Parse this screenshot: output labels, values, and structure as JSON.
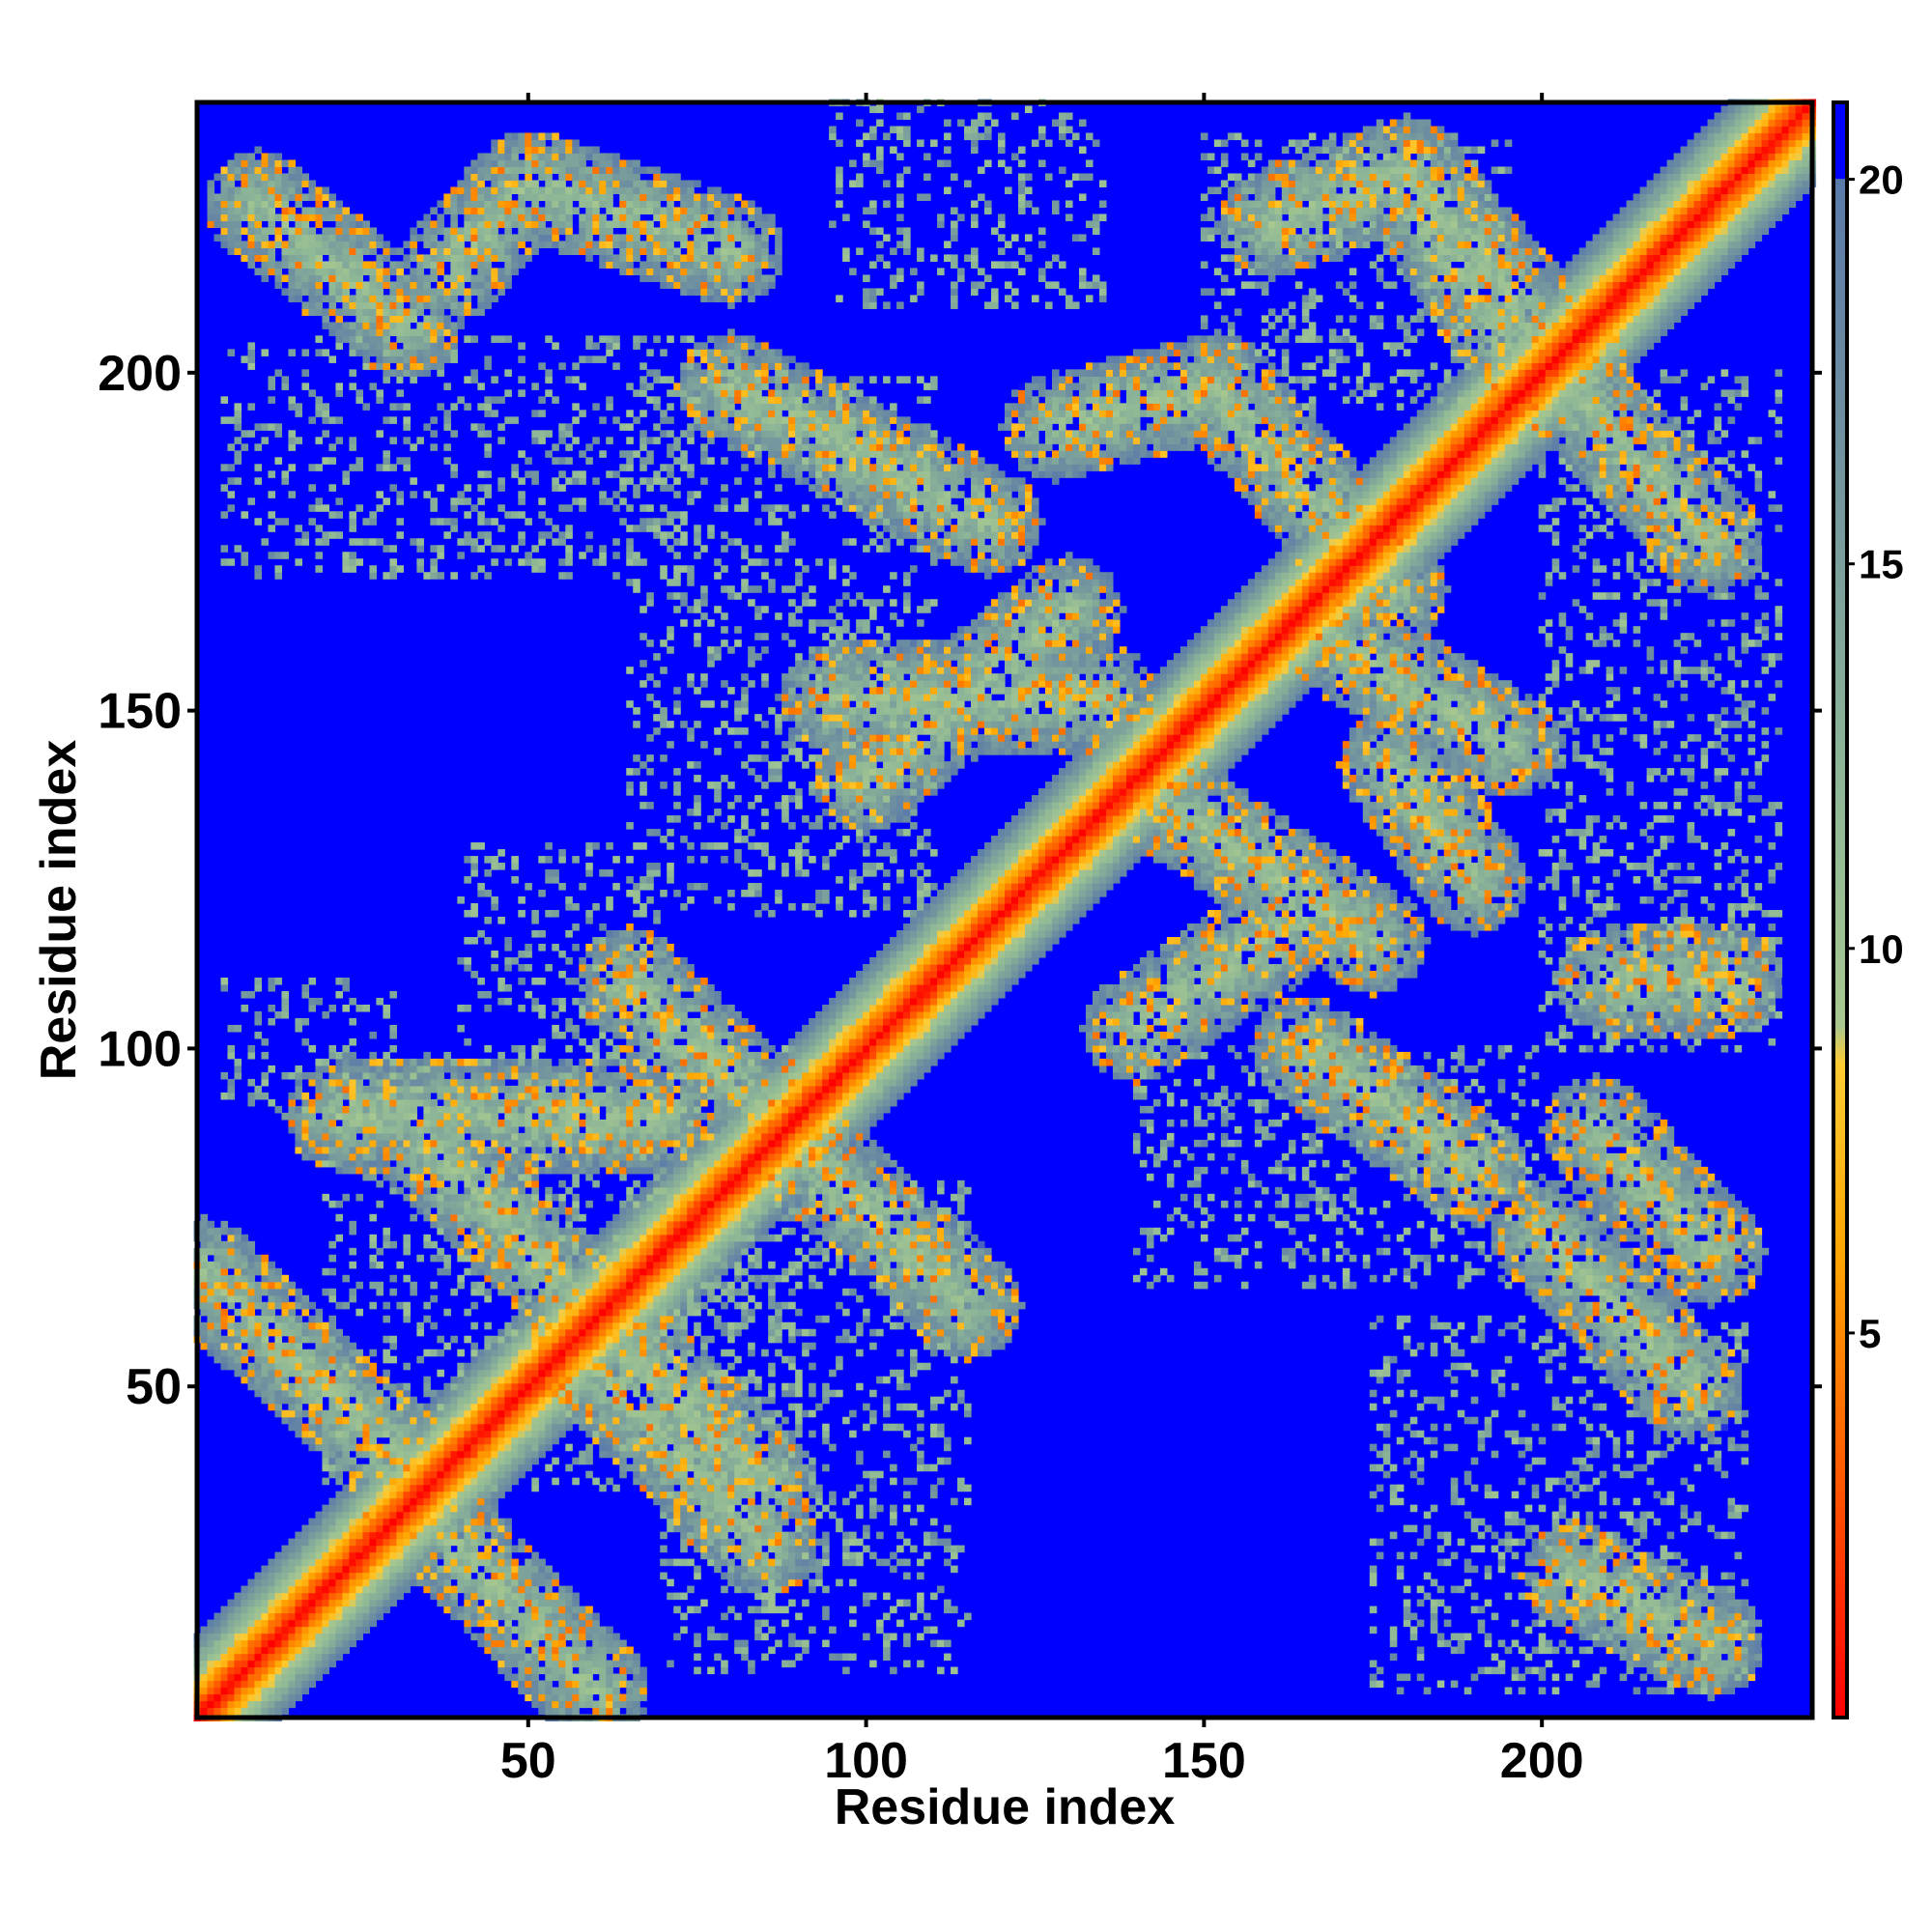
{
  "chart_data": {
    "type": "heatmap",
    "title": "",
    "xlabel": "Residue index",
    "ylabel": "Residue index",
    "x_range": [
      1,
      240
    ],
    "y_range": [
      1,
      240
    ],
    "x_ticks": [
      50,
      100,
      150,
      200
    ],
    "y_ticks": [
      50,
      100,
      150,
      200
    ],
    "n_residues": 240,
    "value_range": [
      0,
      21
    ],
    "background_value": 21,
    "colorbar": {
      "ticks": [
        5,
        10,
        15,
        20
      ],
      "stops": [
        {
          "value": 0,
          "color": "#ff0000"
        },
        {
          "value": 3,
          "color": "#ff5500"
        },
        {
          "value": 6,
          "color": "#ffa500"
        },
        {
          "value": 8.5,
          "color": "#ffcc33"
        },
        {
          "value": 9,
          "color": "#a8c890"
        },
        {
          "value": 12,
          "color": "#8fb896"
        },
        {
          "value": 17,
          "color": "#6d8ea0"
        },
        {
          "value": 20,
          "color": "#5a7aaa"
        },
        {
          "value": 20.01,
          "color": "#0000ff"
        },
        {
          "value": 21,
          "color": "#0000ff"
        }
      ]
    },
    "diagonal": {
      "band_width": 9
    },
    "contact_bands": [
      {
        "points": [
          [
            2,
            67
          ],
          [
            32,
            38
          ]
        ]
      },
      {
        "points": [
          [
            33,
            33
          ],
          [
            60,
            5
          ]
        ]
      },
      {
        "points": [
          [
            58,
            55
          ],
          [
            85,
            27
          ]
        ]
      },
      {
        "points": [
          [
            35,
            86
          ],
          [
            85,
            35
          ]
        ]
      },
      {
        "points": [
          [
            65,
            110
          ],
          [
            115,
            62
          ]
        ]
      },
      {
        "points": [
          [
            22,
            90
          ],
          [
            70,
            90
          ]
        ]
      },
      {
        "points": [
          [
            10,
            225
          ],
          [
            32,
            207
          ]
        ]
      },
      {
        "points": [
          [
            38,
            215
          ],
          [
            50,
            228
          ],
          [
            80,
            218
          ]
        ]
      },
      {
        "points": [
          [
            80,
            198
          ],
          [
            118,
            178
          ]
        ]
      },
      {
        "points": [
          [
            95,
            152
          ],
          [
            135,
            152
          ]
        ]
      },
      {
        "points": [
          [
            100,
            140
          ],
          [
            130,
            165
          ]
        ]
      },
      {
        "points": [
          [
            128,
            192
          ],
          [
            152,
            198
          ],
          [
            178,
            168
          ]
        ]
      },
      {
        "points": [
          [
            160,
            222
          ],
          [
            180,
            230
          ],
          [
            205,
            200
          ]
        ]
      },
      {
        "points": [
          [
            180,
            228
          ],
          [
            195,
            205
          ]
        ]
      },
      {
        "points": [
          [
            202,
            200
          ],
          [
            225,
            175
          ]
        ]
      },
      {
        "points": [
          [
            145,
            136
          ],
          [
            175,
            116
          ]
        ]
      },
      {
        "points": [
          [
            140,
            103
          ],
          [
            165,
            120
          ]
        ]
      },
      {
        "points": [
          [
            170,
            160
          ],
          [
            195,
            145
          ]
        ]
      },
      {
        "points": [
          [
            178,
            142
          ],
          [
            190,
            125
          ]
        ]
      },
      {
        "points": [
          [
            165,
            100
          ],
          [
            190,
            82
          ]
        ]
      },
      {
        "points": [
          [
            200,
            73
          ],
          [
            222,
            50
          ]
        ]
      },
      {
        "points": [
          [
            205,
            22
          ],
          [
            225,
            12
          ]
        ]
      },
      {
        "points": [
          [
            208,
            88
          ],
          [
            225,
            70
          ]
        ]
      },
      {
        "points": [
          [
            210,
            110
          ],
          [
            228,
            110
          ]
        ]
      }
    ],
    "noise_regions": [
      {
        "x": [
          5,
          75
        ],
        "y": [
          170,
          205
        ]
      },
      {
        "x": [
          20,
          90
        ],
        "y": [
          35,
          100
        ]
      },
      {
        "x": [
          70,
          115
        ],
        "y": [
          8,
          80
        ]
      },
      {
        "x": [
          95,
          135
        ],
        "y": [
          210,
          240
        ]
      },
      {
        "x": [
          65,
          110
        ],
        "y": [
          120,
          200
        ]
      },
      {
        "x": [
          140,
          200
        ],
        "y": [
          65,
          100
        ]
      },
      {
        "x": [
          175,
          230
        ],
        "y": [
          5,
          60
        ]
      },
      {
        "x": [
          200,
          235
        ],
        "y": [
          100,
          200
        ]
      },
      {
        "x": [
          150,
          195
        ],
        "y": [
          195,
          235
        ]
      },
      {
        "x": [
          40,
          70
        ],
        "y": [
          100,
          130
        ]
      },
      {
        "x": [
          5,
          30
        ],
        "y": [
          90,
          110
        ]
      }
    ]
  }
}
